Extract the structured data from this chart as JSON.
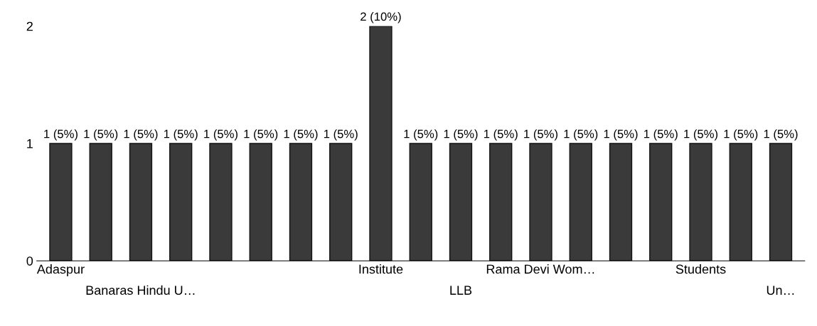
{
  "chart_data": {
    "type": "bar",
    "categories": [
      "Adaspur",
      null,
      "Banaras Hindu U…",
      null,
      null,
      null,
      null,
      null,
      "Institute",
      null,
      "LLB",
      null,
      "Rama Devi Wom…",
      null,
      null,
      null,
      "Students",
      null,
      "Un…"
    ],
    "values": [
      1,
      1,
      1,
      1,
      1,
      1,
      1,
      1,
      2,
      1,
      1,
      1,
      1,
      1,
      1,
      1,
      1,
      1,
      1
    ],
    "value_labels": [
      "1 (5%)",
      "1 (5%)",
      "1 (5%)",
      "1 (5%)",
      "1 (5%)",
      "1 (5%)",
      "1 (5%)",
      "1 (5%)",
      "2 (10%)",
      "1 (5%)",
      "1 (5%)",
      "1 (5%)",
      "1 (5%)",
      "1 (5%)",
      "1 (5%)",
      "1 (5%)",
      "1 (5%)",
      "1 (5%)",
      "1 (5%)"
    ],
    "color": "#3a3a3a",
    "ylim": [
      0,
      2
    ],
    "yticks": [
      0,
      1,
      2
    ],
    "grid": false
  }
}
